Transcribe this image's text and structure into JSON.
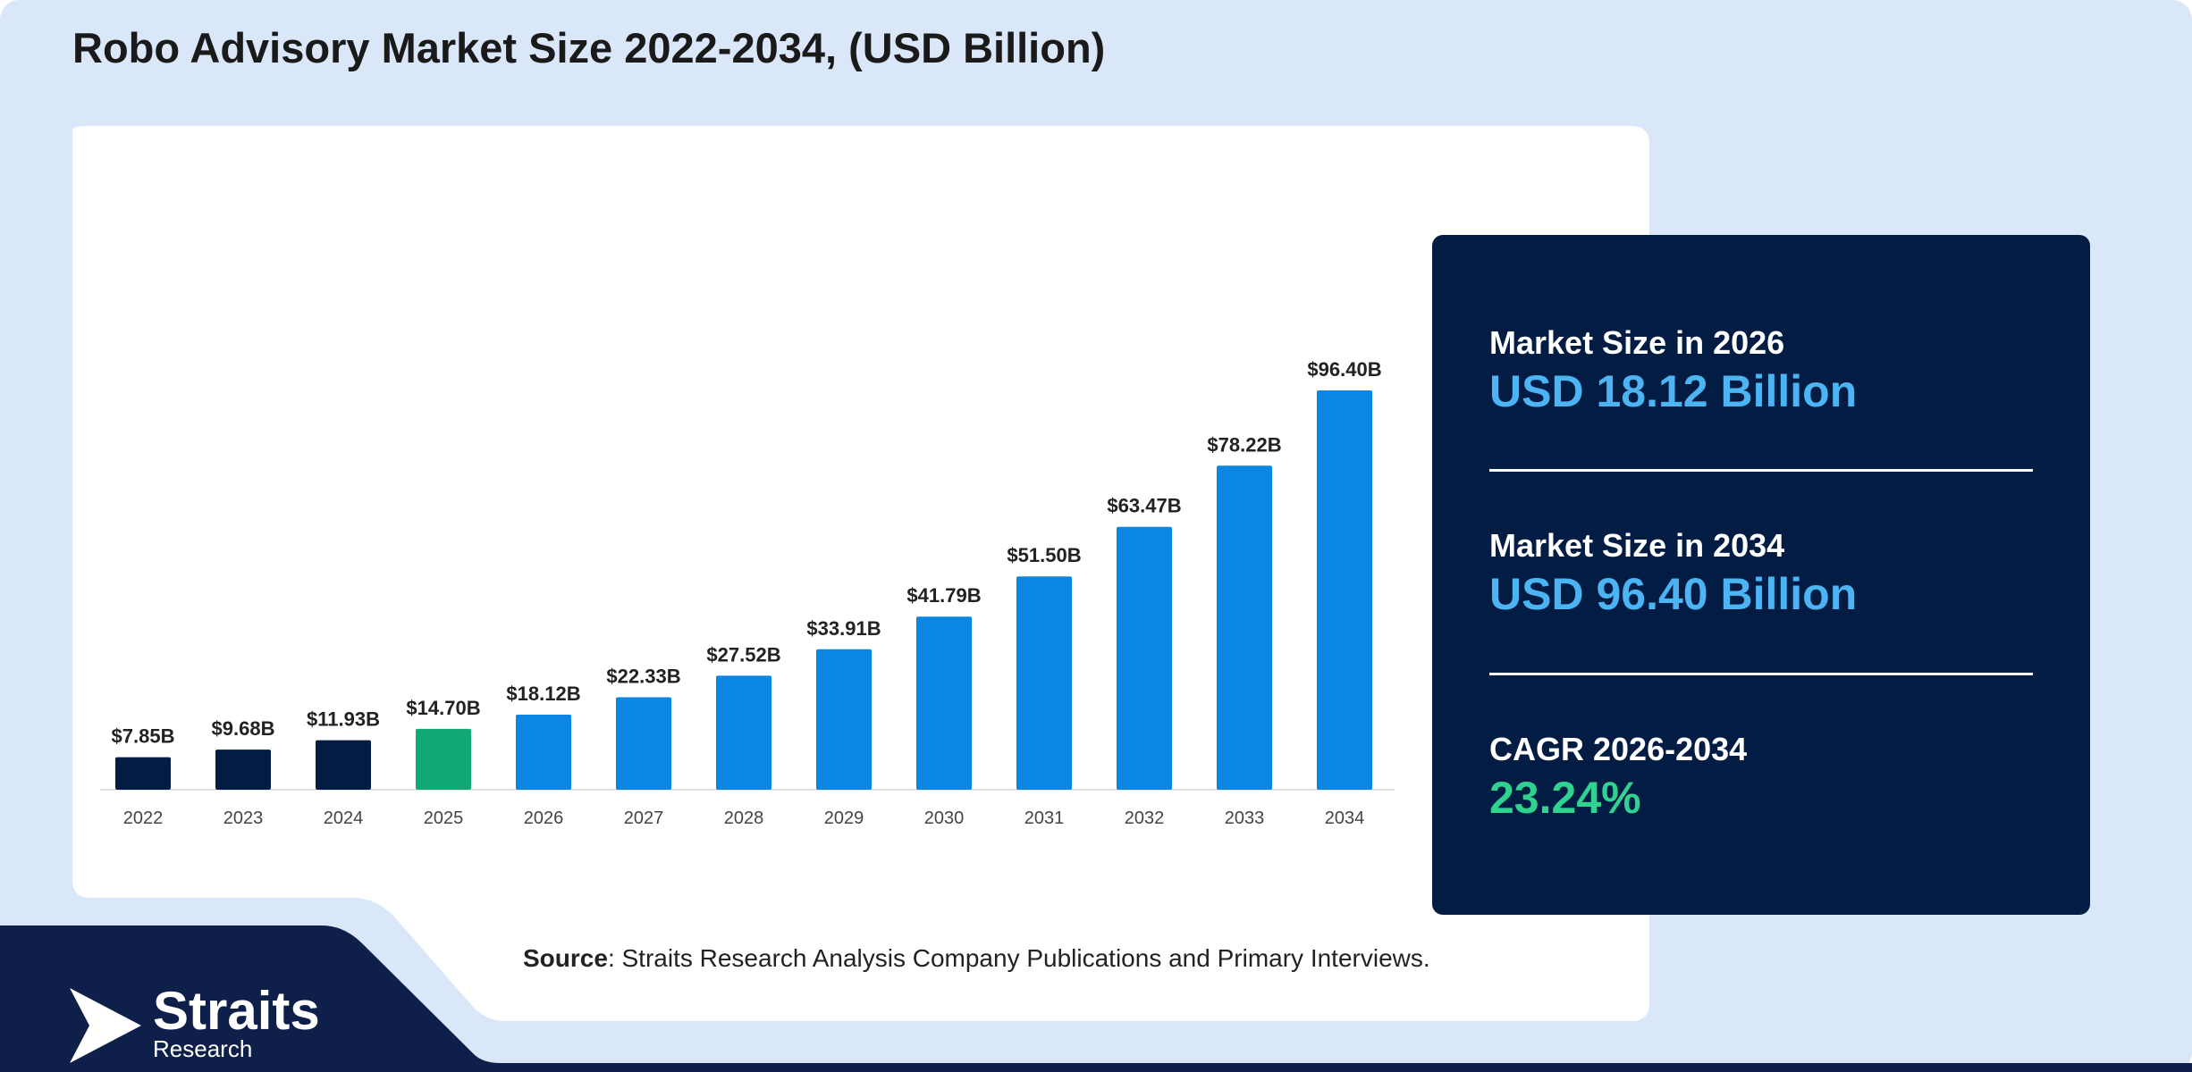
{
  "title": "Robo Advisory Market Size 2022-2034, (USD Billion)",
  "colors": {
    "background": "#d9e7f9",
    "card": "#ffffff",
    "historical_bar": "#021c44",
    "base_year_bar": "#12a874",
    "forecast_bar": "#0b87e3",
    "panel": "#021c44",
    "panel_value": "#4cb4f3",
    "cagr_value": "#2fd38f",
    "footer": "#0e1f4a"
  },
  "chart_data": {
    "type": "bar",
    "categories": [
      "2022",
      "2023",
      "2024",
      "2025",
      "2026",
      "2027",
      "2028",
      "2029",
      "2030",
      "2031",
      "2032",
      "2033",
      "2034"
    ],
    "values": [
      7.85,
      9.68,
      11.93,
      14.7,
      18.12,
      22.33,
      27.52,
      33.91,
      41.79,
      51.5,
      63.47,
      78.22,
      96.4
    ],
    "labels": [
      "$7.85B",
      "$9.68B",
      "$11.93B",
      "$14.70B",
      "$18.12B",
      "$22.33B",
      "$27.52B",
      "$33.91B",
      "$41.79B",
      "$51.50B",
      "$63.47B",
      "$78.22B",
      "$96.40B"
    ],
    "bar_groups": [
      "historical",
      "historical",
      "historical",
      "base",
      "forecast",
      "forecast",
      "forecast",
      "forecast",
      "forecast",
      "forecast",
      "forecast",
      "forecast",
      "forecast"
    ],
    "ylim": [
      0,
      96.4
    ],
    "grid": false,
    "legend": "none",
    "title": "Robo Advisory Market Size 2022-2034, (USD Billion)",
    "xlabel": "",
    "ylabel": ""
  },
  "stats": [
    {
      "label": "Market Size in 2026",
      "value": "USD 18.12 Billion"
    },
    {
      "label": "Market Size in 2034",
      "value": "USD 96.40 Billion"
    },
    {
      "label": "CAGR 2026-2034",
      "value": "23.24%"
    }
  ],
  "source": {
    "label": "Source",
    "text": ": Straits Research Analysis Company Publications and Primary Interviews."
  },
  "logo": {
    "name": "Straits",
    "sub": "Research"
  }
}
